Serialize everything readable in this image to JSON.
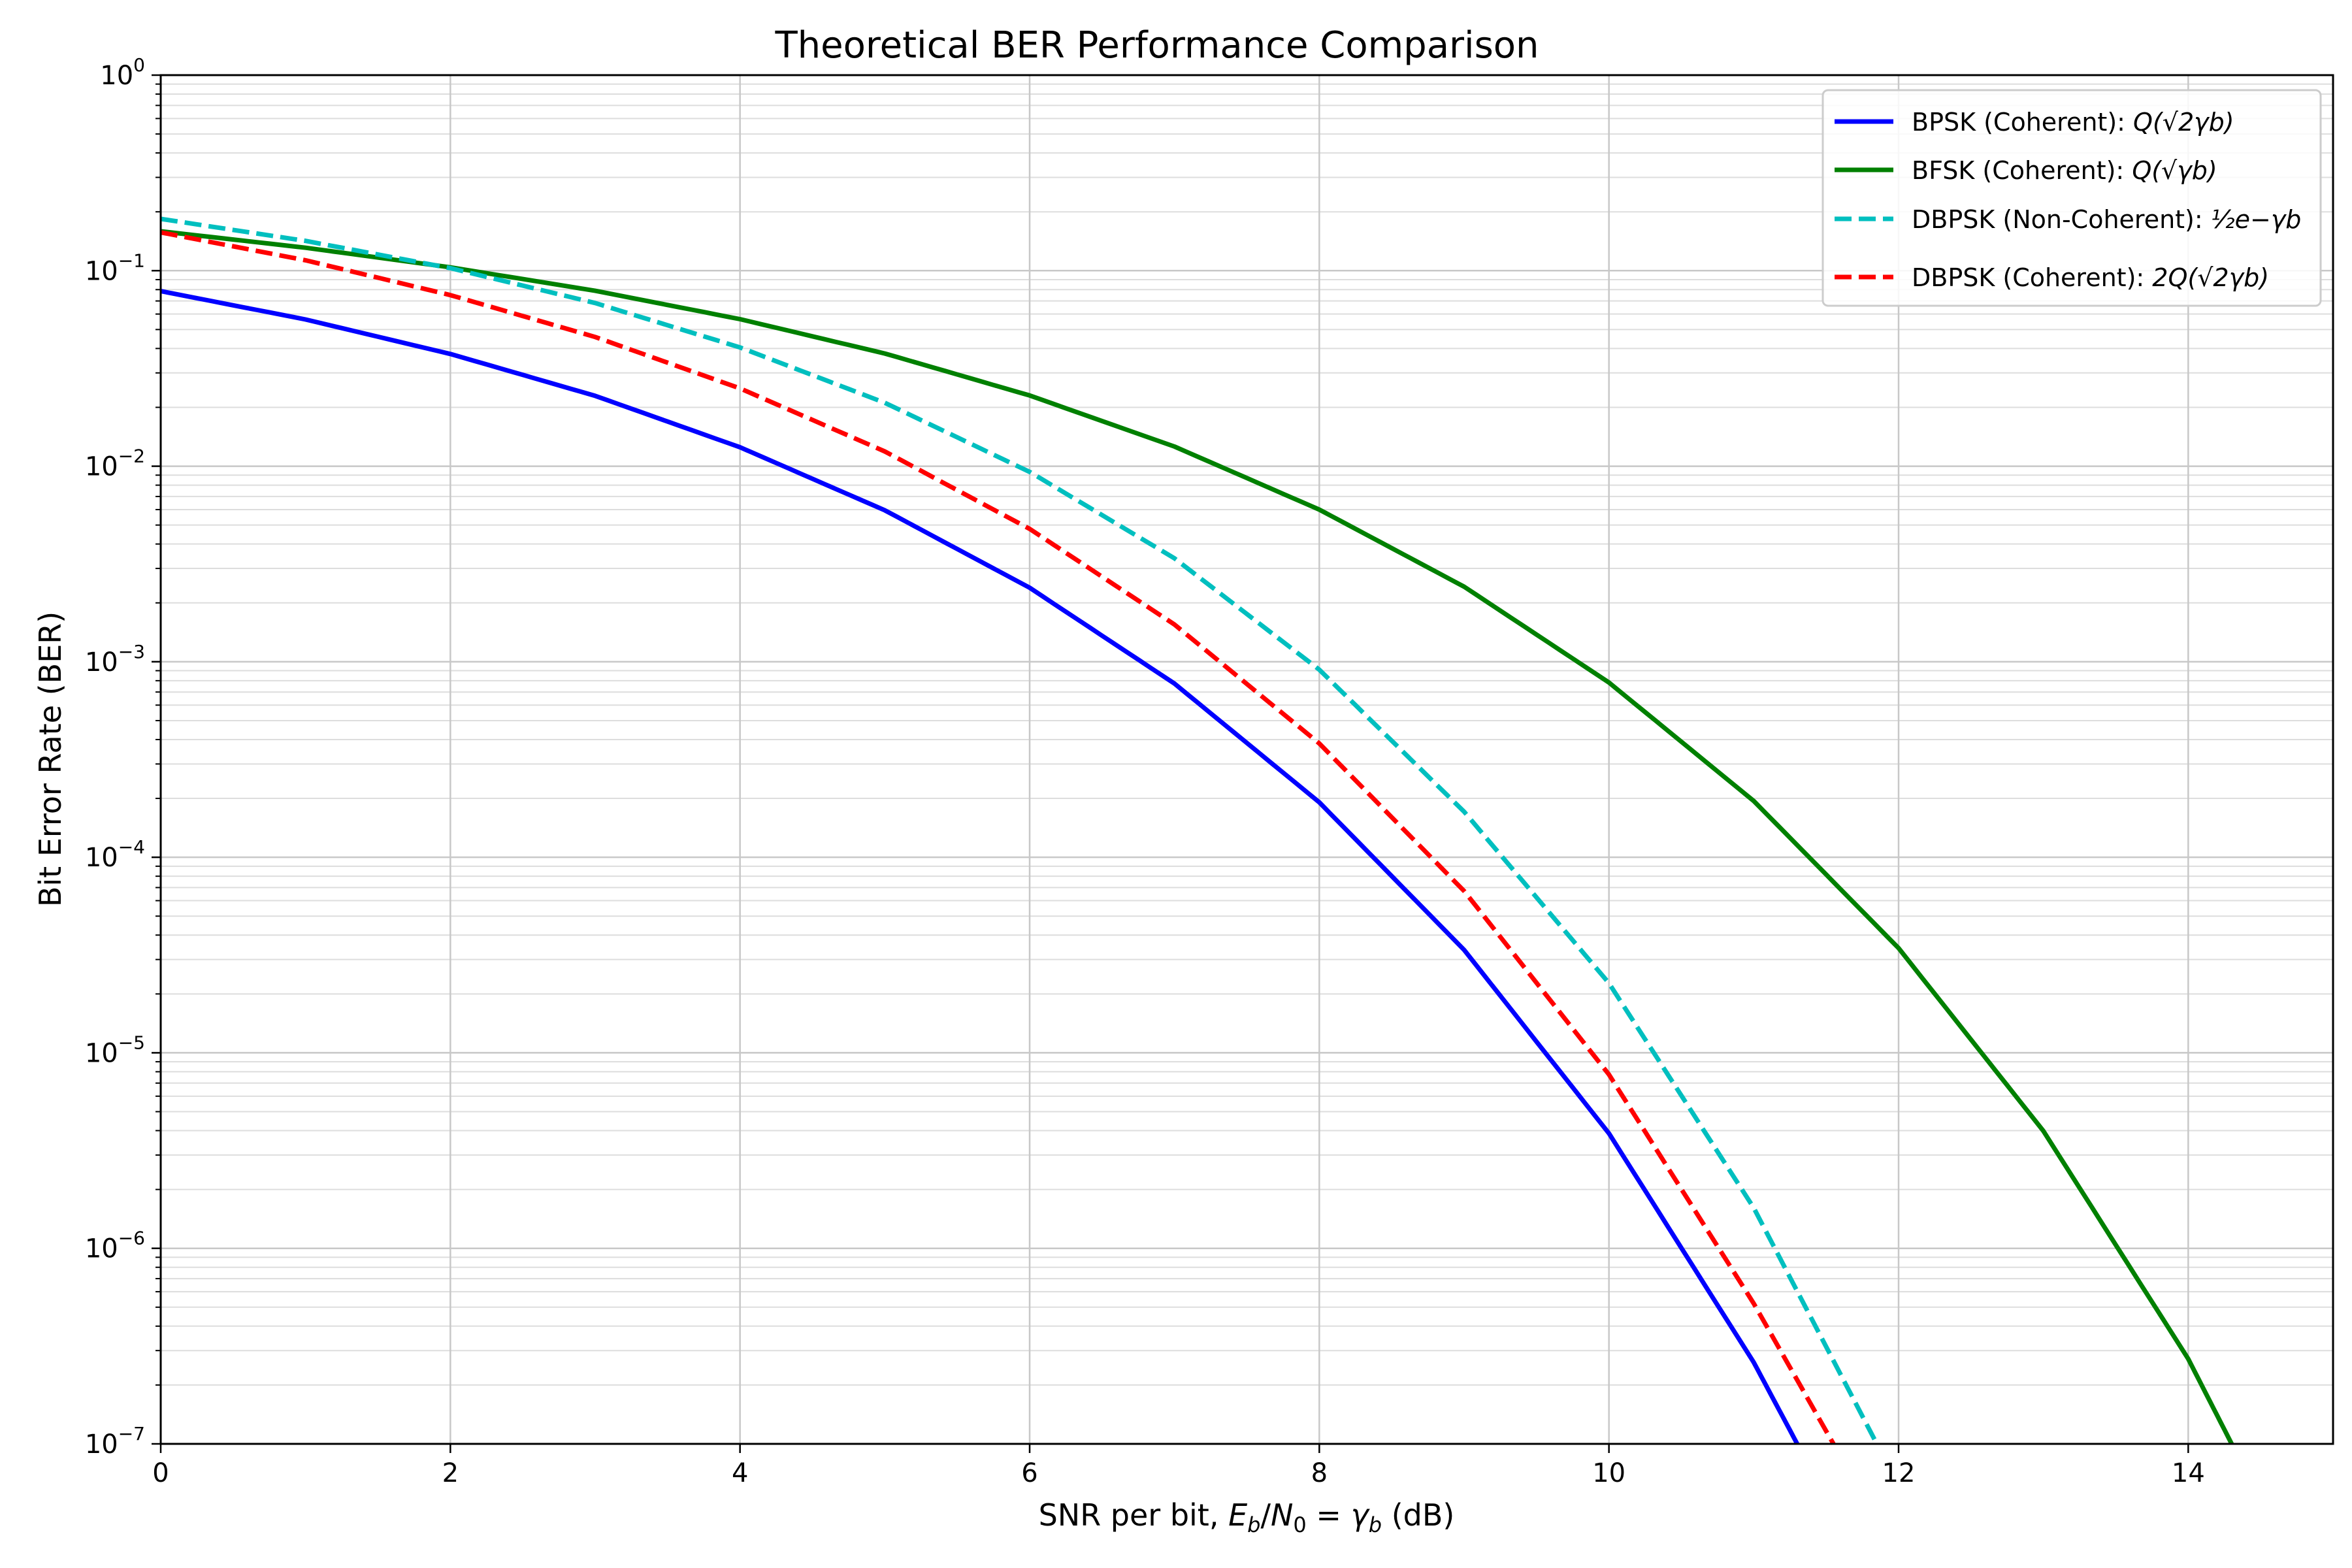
{
  "chart_data": {
    "type": "line",
    "title": "Theoretical BER Performance Comparison",
    "xlabel": "SNR per bit, E_b/N_0 = γ_b (dB)",
    "xlabel_parts": {
      "prefix": "SNR per bit, ",
      "e": "E",
      "b1": "b",
      "slash": "/",
      "n": "N",
      "zero": "0",
      "eq": " = ",
      "gamma": "γ",
      "b2": "b",
      "suffix": " (dB)"
    },
    "ylabel": "Bit Error Rate (BER)",
    "xlim": [
      0,
      15
    ],
    "ylim": [
      1e-07,
      1
    ],
    "yscale": "log",
    "grid": true,
    "legend_position": "top-right",
    "x_ticks": [
      "0",
      "2",
      "4",
      "6",
      "8",
      "10",
      "12",
      "14"
    ],
    "y_ticks": [
      {
        "base": "10",
        "exp": "0"
      },
      {
        "base": "10",
        "exp": "−1"
      },
      {
        "base": "10",
        "exp": "−2"
      },
      {
        "base": "10",
        "exp": "−3"
      },
      {
        "base": "10",
        "exp": "−4"
      },
      {
        "base": "10",
        "exp": "−5"
      },
      {
        "base": "10",
        "exp": "−6"
      },
      {
        "base": "10",
        "exp": "−7"
      }
    ],
    "series": [
      {
        "name": "BPSK (Coherent): Q(√(2γ_b))",
        "legend_text": "BPSK (Coherent): ",
        "formula": "Q(√2γb)",
        "color": "#0000ff",
        "style": "solid",
        "x": [
          0,
          1,
          2,
          3,
          4,
          5,
          6,
          7,
          8,
          9,
          10,
          11,
          11.3
        ],
        "y": [
          0.0786,
          0.0563,
          0.0375,
          0.0229,
          0.0125,
          0.00595,
          0.00239,
          0.000773,
          0.000191,
          3.36e-05,
          3.87e-06,
          2.61e-07,
          1e-07
        ]
      },
      {
        "name": "BFSK (Coherent): Q(√γ_b)",
        "legend_text": "BFSK (Coherent): ",
        "formula": "Q(√γb)",
        "color": "#008000",
        "style": "solid",
        "x": [
          0,
          1,
          2,
          3,
          4,
          5,
          6,
          7,
          8,
          9,
          10,
          11,
          12,
          13,
          14,
          14.3
        ],
        "y": [
          0.159,
          0.131,
          0.104,
          0.0789,
          0.0565,
          0.0377,
          0.023,
          0.0126,
          0.006,
          0.00242,
          0.000783,
          0.000194,
          3.43e-05,
          3.98e-06,
          2.72e-07,
          1e-07
        ]
      },
      {
        "name": "DBPSK (Non-Coherent): ½e^(−γ_b)",
        "legend_text": "DBPSK (Non-Coherent): ",
        "formula": "½e−γb",
        "color": "#00bfbf",
        "style": "dashed",
        "x": [
          0,
          1,
          2,
          3,
          4,
          5,
          6,
          7,
          8,
          9,
          10,
          11,
          11.85
        ],
        "y": [
          0.184,
          0.142,
          0.103,
          0.0683,
          0.0405,
          0.0211,
          0.00935,
          0.00338,
          0.000911,
          0.000171,
          2.27e-05,
          1.61e-06,
          1e-07
        ]
      },
      {
        "name": "DBPSK (Coherent): 2Q(√(2γ_b))",
        "legend_text": "DBPSK (Coherent): ",
        "formula": "2Q(√2γb)",
        "color": "#ff0000",
        "style": "dashed",
        "x": [
          0,
          1,
          2,
          3,
          4,
          5,
          6,
          7,
          8,
          9,
          10,
          11,
          11.55
        ],
        "y": [
          0.157,
          0.113,
          0.075,
          0.0458,
          0.025,
          0.0119,
          0.00478,
          0.00155,
          0.000382,
          6.72e-05,
          7.74e-06,
          5.22e-07,
          1e-07
        ]
      }
    ]
  }
}
